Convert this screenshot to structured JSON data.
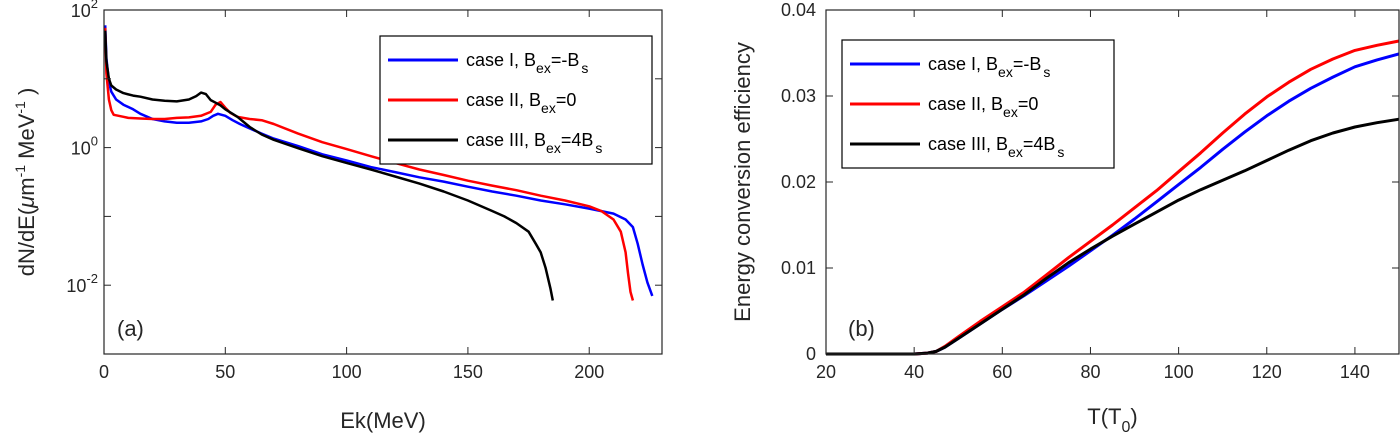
{
  "chart_data": [
    {
      "type": "line",
      "panel_label": "(a)",
      "xlabel": "Ek(MeV)",
      "ylabel_parts": {
        "main": "dN/dE(",
        "mu": "μ",
        "m": "m",
        "m_exp": "-1",
        "mev": " MeV",
        "mev_exp": "-1",
        "close": " )"
      },
      "xlim": [
        0,
        230
      ],
      "ylim": [
        0.001,
        100
      ],
      "yscale": "log",
      "xticks": [
        0,
        50,
        100,
        150,
        200
      ],
      "xtick_labels": [
        "0",
        "50",
        "100",
        "150",
        "200"
      ],
      "yticks": [
        0.01,
        1,
        100
      ],
      "ytick_labels": [
        {
          "base": "10",
          "exp": "-2"
        },
        {
          "base": "10",
          "exp": "0"
        },
        {
          "base": "10",
          "exp": "2"
        }
      ],
      "legend_position": "top-right",
      "series": [
        {
          "name": "case I, B_ex=-B_s",
          "legend": {
            "text": "case I, B",
            "sub": "ex",
            "mid": "=-B",
            "sub2": "s"
          },
          "color": "#0000ff",
          "x": [
            0.5,
            1,
            2,
            3,
            5,
            8,
            12,
            15,
            20,
            25,
            30,
            35,
            40,
            43,
            45,
            47,
            50,
            53,
            56,
            60,
            65,
            70,
            80,
            90,
            100,
            110,
            120,
            130,
            140,
            150,
            160,
            170,
            180,
            190,
            200,
            210,
            215,
            218,
            220,
            222,
            224,
            226
          ],
          "y": [
            60,
            20,
            9,
            6.5,
            5,
            4.2,
            3.6,
            3.1,
            2.6,
            2.4,
            2.3,
            2.3,
            2.4,
            2.6,
            2.9,
            3.1,
            2.9,
            2.5,
            2.2,
            1.9,
            1.6,
            1.35,
            1.05,
            0.8,
            0.65,
            0.52,
            0.44,
            0.37,
            0.32,
            0.27,
            0.23,
            0.2,
            0.17,
            0.15,
            0.13,
            0.11,
            0.09,
            0.07,
            0.04,
            0.02,
            0.011,
            0.007
          ]
        },
        {
          "name": "case II, B_ex=0",
          "legend": {
            "text": "case II, B",
            "sub": "ex",
            "mid": "=0",
            "sub2": ""
          },
          "color": "#ff0000",
          "x": [
            0.5,
            1,
            2,
            3,
            4,
            6,
            8,
            10,
            15,
            20,
            25,
            30,
            35,
            40,
            44,
            46,
            48,
            50,
            52,
            55,
            60,
            65,
            70,
            80,
            90,
            100,
            110,
            120,
            130,
            140,
            150,
            160,
            170,
            180,
            190,
            200,
            205,
            210,
            213,
            215,
            216,
            217,
            218
          ],
          "y": [
            55,
            12,
            5,
            3.5,
            3.0,
            2.9,
            2.8,
            2.7,
            2.65,
            2.6,
            2.6,
            2.7,
            2.75,
            2.9,
            3.3,
            4.2,
            4.6,
            3.8,
            3.2,
            2.8,
            2.6,
            2.5,
            2.2,
            1.6,
            1.2,
            0.95,
            0.75,
            0.6,
            0.48,
            0.4,
            0.33,
            0.28,
            0.24,
            0.2,
            0.17,
            0.14,
            0.12,
            0.09,
            0.06,
            0.03,
            0.015,
            0.008,
            0.006
          ]
        },
        {
          "name": "case III, B_ex=4B_s",
          "legend": {
            "text": "case III, B",
            "sub": "ex",
            "mid": "=4B",
            "sub2": "s"
          },
          "color": "#000000",
          "x": [
            0.5,
            1,
            2,
            3,
            5,
            8,
            12,
            15,
            20,
            25,
            30,
            35,
            38,
            40,
            42,
            44,
            46,
            48,
            50,
            55,
            60,
            65,
            70,
            80,
            90,
            100,
            110,
            120,
            130,
            140,
            150,
            160,
            165,
            170,
            175,
            178,
            180,
            182,
            184,
            185
          ],
          "y": [
            50,
            18,
            10,
            8,
            7,
            6.2,
            5.7,
            5.5,
            5.0,
            4.8,
            4.7,
            5.0,
            5.6,
            6.3,
            6.0,
            4.9,
            4.5,
            4.1,
            3.6,
            2.8,
            2.0,
            1.55,
            1.3,
            0.98,
            0.75,
            0.6,
            0.48,
            0.38,
            0.3,
            0.23,
            0.17,
            0.12,
            0.1,
            0.08,
            0.06,
            0.04,
            0.03,
            0.018,
            0.009,
            0.006
          ]
        }
      ]
    },
    {
      "type": "line",
      "panel_label": "(b)",
      "xlabel": "T(T",
      "xlabel_sub": "0",
      "xlabel_close": ")",
      "ylabel": "Energy conversion efficiency",
      "xlim": [
        20,
        150
      ],
      "ylim": [
        0,
        0.04
      ],
      "xticks": [
        20,
        40,
        60,
        80,
        100,
        120,
        140
      ],
      "xtick_labels": [
        "20",
        "40",
        "60",
        "80",
        "100",
        "120",
        "140"
      ],
      "yticks": [
        0,
        0.01,
        0.02,
        0.03,
        0.04
      ],
      "ytick_labels": [
        "0",
        "0.01",
        "0.02",
        "0.03",
        "0.04"
      ],
      "legend_position": "top-left",
      "series": [
        {
          "name": "case I, B_ex=-B_s",
          "legend": {
            "text": "case I, B",
            "sub": "ex",
            "mid": "=-B",
            "sub2": "s"
          },
          "color": "#0000ff",
          "x": [
            20,
            30,
            40,
            43,
            45,
            47,
            50,
            55,
            60,
            65,
            70,
            75,
            80,
            85,
            90,
            95,
            100,
            105,
            110,
            115,
            120,
            125,
            130,
            135,
            140,
            145,
            150
          ],
          "y": [
            0,
            0,
            0,
            0.0001,
            0.0003,
            0.0008,
            0.0018,
            0.0035,
            0.0052,
            0.0068,
            0.0085,
            0.0102,
            0.012,
            0.0138,
            0.0157,
            0.0177,
            0.0197,
            0.0217,
            0.0238,
            0.0258,
            0.0277,
            0.0294,
            0.0309,
            0.0322,
            0.0334,
            0.0342,
            0.0349
          ]
        },
        {
          "name": "case II, B_ex=0",
          "legend": {
            "text": "case II, B",
            "sub": "ex",
            "mid": "=0",
            "sub2": ""
          },
          "color": "#ff0000",
          "x": [
            20,
            30,
            40,
            43,
            45,
            47,
            50,
            55,
            60,
            65,
            70,
            75,
            80,
            85,
            90,
            95,
            100,
            105,
            110,
            115,
            120,
            125,
            130,
            135,
            140,
            145,
            150
          ],
          "y": [
            0,
            0,
            0,
            0.0001,
            0.0003,
            0.0009,
            0.002,
            0.0038,
            0.0055,
            0.0072,
            0.0092,
            0.0112,
            0.0131,
            0.015,
            0.017,
            0.019,
            0.0212,
            0.0234,
            0.0257,
            0.0279,
            0.0299,
            0.0316,
            0.0331,
            0.0343,
            0.0353,
            0.0359,
            0.0364
          ]
        },
        {
          "name": "case III, B_ex=4B_s",
          "legend": {
            "text": "case III, B",
            "sub": "ex",
            "mid": "=4B",
            "sub2": "s"
          },
          "color": "#000000",
          "x": [
            20,
            30,
            40,
            43,
            45,
            47,
            50,
            55,
            60,
            65,
            70,
            75,
            80,
            85,
            90,
            95,
            100,
            105,
            110,
            115,
            120,
            125,
            130,
            135,
            140,
            145,
            150
          ],
          "y": [
            0,
            0,
            0,
            0.0001,
            0.0003,
            0.0008,
            0.0018,
            0.0035,
            0.0052,
            0.0069,
            0.0088,
            0.0106,
            0.0122,
            0.0137,
            0.0151,
            0.0165,
            0.0179,
            0.0191,
            0.0202,
            0.0213,
            0.0225,
            0.0237,
            0.0248,
            0.0257,
            0.0264,
            0.0269,
            0.0273
          ]
        }
      ]
    }
  ]
}
